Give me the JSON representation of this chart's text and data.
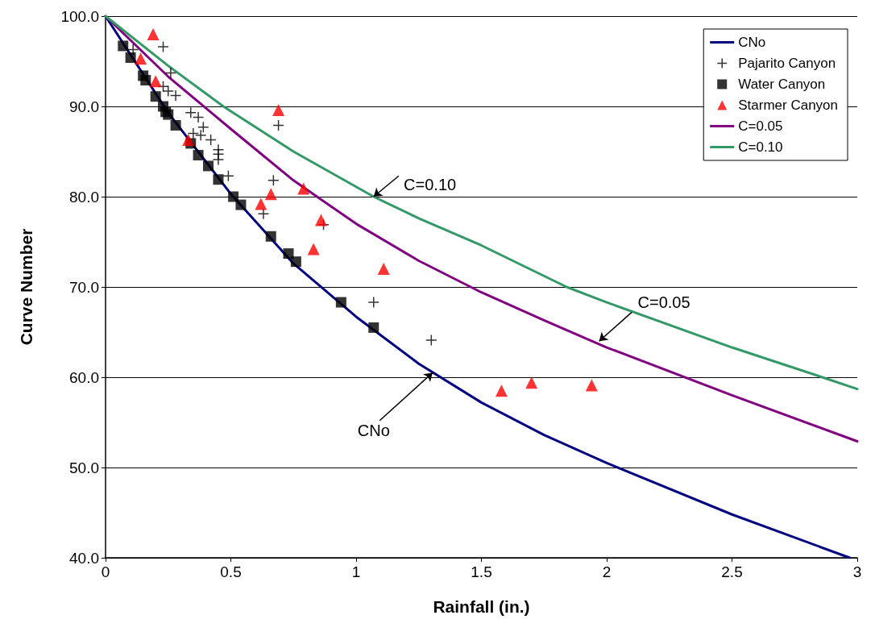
{
  "chart_data": {
    "type": "scatter",
    "xlabel": "Rainfall (in.)",
    "ylabel": "Curve Number",
    "xlim": [
      0,
      3
    ],
    "xticks": [
      0,
      0.5,
      1,
      1.5,
      2,
      2.5,
      3
    ],
    "ylim": [
      40,
      100
    ],
    "yticks": [
      {
        "value": 40,
        "label": "40.0"
      },
      {
        "value": 50,
        "label": "50.0"
      },
      {
        "value": 60,
        "label": "60.0"
      },
      {
        "value": 70,
        "label": "70.0"
      },
      {
        "value": 80,
        "label": "80.0"
      },
      {
        "value": 90,
        "label": "90.0"
      },
      {
        "value": 100,
        "label": "100.0"
      }
    ],
    "grid": "y",
    "legend": "top right",
    "series": [
      {
        "name": "CNo",
        "type": "line",
        "marker": "none",
        "color": "#000080",
        "x": [
          0,
          0.25,
          0.5,
          0.75,
          1,
          1.25,
          1.5,
          1.75,
          2,
          2.5,
          2.97
        ],
        "values": [
          100,
          89.3,
          80.3,
          72.6,
          66.7,
          61.5,
          57.2,
          53.6,
          50.5,
          44.8,
          40.0
        ]
      },
      {
        "name": "Pajarito Canyon",
        "marker": "cross",
        "color": "#000000",
        "x": [
          0.11,
          0.23,
          0.26,
          0.23,
          0.25,
          0.28,
          0.34,
          0.37,
          0.39,
          0.35,
          0.38,
          0.42,
          0.45,
          0.45,
          0.45,
          0.49,
          0.69,
          0.67,
          0.63,
          0.87,
          1.07,
          1.3
        ],
        "values": [
          96.3,
          96.6,
          93.7,
          92.2,
          91.7,
          91.2,
          89.3,
          88.8,
          87.7,
          87.0,
          86.8,
          86.3,
          85.2,
          84.7,
          84.1,
          82.3,
          87.9,
          81.8,
          78.1,
          76.9,
          68.3,
          64.1
        ]
      },
      {
        "name": "Water Canyon",
        "marker": "square",
        "color": "#000000",
        "x": [
          0.07,
          0.1,
          0.15,
          0.16,
          0.2,
          0.23,
          0.24,
          0.25,
          0.28,
          0.34,
          0.37,
          0.41,
          0.45,
          0.51,
          0.54,
          0.66,
          0.73,
          0.76,
          0.94,
          1.07
        ],
        "values": [
          96.7,
          95.4,
          93.4,
          92.9,
          91.1,
          90.0,
          89.4,
          89.1,
          87.9,
          85.9,
          84.6,
          83.4,
          81.9,
          80.0,
          79.1,
          75.6,
          73.7,
          72.8,
          68.3,
          65.5
        ]
      },
      {
        "name": "Starmer Canyon",
        "marker": "triangle",
        "color": "#ff0000",
        "x": [
          0.19,
          0.14,
          0.2,
          0.33,
          0.69,
          0.66,
          0.62,
          0.79,
          0.86,
          0.83,
          1.11,
          1.58,
          1.7,
          1.94
        ],
        "values": [
          98.0,
          95.3,
          92.8,
          86.3,
          89.6,
          80.3,
          79.2,
          80.9,
          77.4,
          74.2,
          72.0,
          58.5,
          59.4,
          59.1
        ]
      },
      {
        "name": "C=0.05",
        "type": "line",
        "marker": "none",
        "color": "#800080",
        "x": [
          0,
          0.25,
          0.5,
          0.75,
          1,
          1.25,
          1.5,
          1.75,
          2,
          2.5,
          3
        ],
        "values": [
          100,
          93.3,
          87.5,
          81.8,
          77.0,
          72.9,
          69.4,
          66.3,
          63.3,
          58.0,
          52.9
        ]
      },
      {
        "name": "C=0.10",
        "type": "line",
        "marker": "none",
        "color": "#339966",
        "x": [
          0,
          0.25,
          0.47,
          0.75,
          1.07,
          1.25,
          1.5,
          1.84,
          2,
          2.5,
          2.86,
          3
        ],
        "values": [
          100,
          94.5,
          90,
          85.0,
          80,
          77.6,
          74.6,
          70,
          68.3,
          63.3,
          60,
          58.7
        ]
      }
    ],
    "annotations": [
      {
        "text": "C=0.10",
        "x": 1.07,
        "y": 80
      },
      {
        "text": "C=0.05",
        "x": 1.97,
        "y": 64.0
      },
      {
        "text": "CNo",
        "x": 1.305,
        "y": 60.5
      }
    ]
  }
}
